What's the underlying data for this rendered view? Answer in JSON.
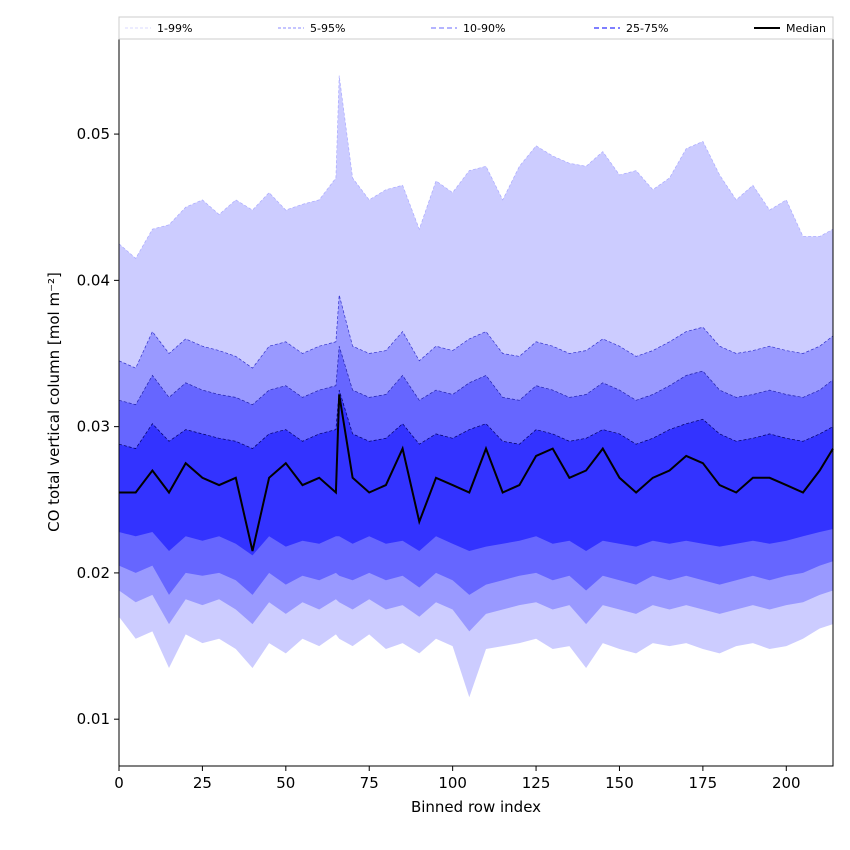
{
  "chart_data": {
    "type": "area",
    "title": "",
    "xlabel": "Binned row index",
    "ylabel": "CO total vertical column [mol m⁻²]",
    "xlim": [
      0,
      214
    ],
    "ylim": [
      0.0068,
      0.0565
    ],
    "x_ticks": [
      0,
      25,
      50,
      75,
      100,
      125,
      150,
      175,
      200
    ],
    "y_ticks": [
      0.01,
      0.02,
      0.03,
      0.04,
      0.05
    ],
    "x_tick_labels": [
      "0",
      "25",
      "50",
      "75",
      "100",
      "125",
      "150",
      "175",
      "200"
    ],
    "y_tick_labels": [
      "0.01",
      "0.02",
      "0.03",
      "0.04",
      "0.05"
    ],
    "grid": false,
    "legend_position": "top, above plot area",
    "legend": [
      "1-99%",
      "5-95%",
      "10-90%",
      "25-75%",
      "Median"
    ],
    "x": [
      0,
      5,
      10,
      15,
      20,
      25,
      30,
      35,
      40,
      45,
      50,
      55,
      60,
      65,
      66,
      70,
      75,
      80,
      85,
      90,
      95,
      100,
      105,
      110,
      115,
      120,
      125,
      130,
      135,
      140,
      145,
      150,
      155,
      160,
      165,
      170,
      175,
      180,
      185,
      190,
      195,
      200,
      205,
      210,
      214
    ],
    "series": [
      {
        "name": "1-99%",
        "style": "fill",
        "color": "#ccccff",
        "lower": [
          0.017,
          0.0155,
          0.016,
          0.0135,
          0.0158,
          0.0152,
          0.0155,
          0.0148,
          0.0135,
          0.0152,
          0.0145,
          0.0155,
          0.015,
          0.0158,
          0.0155,
          0.015,
          0.0158,
          0.0148,
          0.0152,
          0.0145,
          0.0155,
          0.015,
          0.0115,
          0.0148,
          0.015,
          0.0152,
          0.0155,
          0.0148,
          0.015,
          0.0135,
          0.0152,
          0.0148,
          0.0145,
          0.0152,
          0.015,
          0.0152,
          0.0148,
          0.0145,
          0.015,
          0.0152,
          0.0148,
          0.015,
          0.0155,
          0.0162,
          0.0165
        ],
        "upper": [
          0.0425,
          0.0415,
          0.0435,
          0.0438,
          0.045,
          0.0455,
          0.0445,
          0.0455,
          0.0448,
          0.046,
          0.0448,
          0.0452,
          0.0455,
          0.047,
          0.054,
          0.047,
          0.0455,
          0.0462,
          0.0465,
          0.0435,
          0.0468,
          0.046,
          0.0475,
          0.0478,
          0.0455,
          0.0478,
          0.0492,
          0.0485,
          0.048,
          0.0478,
          0.0488,
          0.0472,
          0.0475,
          0.0462,
          0.047,
          0.049,
          0.0495,
          0.0472,
          0.0455,
          0.0465,
          0.0448,
          0.0455,
          0.043,
          0.043,
          0.0435
        ]
      },
      {
        "name": "5-95%",
        "style": "fill",
        "color": "#9999ff",
        "lower": [
          0.0188,
          0.018,
          0.0185,
          0.0165,
          0.0182,
          0.0178,
          0.0182,
          0.0175,
          0.0165,
          0.018,
          0.0172,
          0.018,
          0.0175,
          0.0182,
          0.018,
          0.0175,
          0.0182,
          0.0175,
          0.0178,
          0.017,
          0.018,
          0.0175,
          0.016,
          0.0172,
          0.0175,
          0.0178,
          0.018,
          0.0175,
          0.0178,
          0.0165,
          0.0178,
          0.0175,
          0.0172,
          0.0178,
          0.0175,
          0.0178,
          0.0175,
          0.0172,
          0.0175,
          0.0178,
          0.0175,
          0.0178,
          0.018,
          0.0185,
          0.0188
        ],
        "upper": [
          0.0345,
          0.034,
          0.0365,
          0.035,
          0.036,
          0.0355,
          0.0352,
          0.0348,
          0.034,
          0.0355,
          0.0358,
          0.035,
          0.0355,
          0.0358,
          0.039,
          0.0355,
          0.035,
          0.0352,
          0.0365,
          0.0345,
          0.0355,
          0.0352,
          0.036,
          0.0365,
          0.035,
          0.0348,
          0.0358,
          0.0355,
          0.035,
          0.0352,
          0.036,
          0.0355,
          0.0348,
          0.0352,
          0.0358,
          0.0365,
          0.0368,
          0.0355,
          0.035,
          0.0352,
          0.0355,
          0.0352,
          0.035,
          0.0355,
          0.0362
        ]
      },
      {
        "name": "10-90%",
        "style": "fill",
        "color": "#6666ff",
        "lower": [
          0.0205,
          0.02,
          0.0205,
          0.0185,
          0.02,
          0.0198,
          0.02,
          0.0195,
          0.0185,
          0.02,
          0.0192,
          0.0198,
          0.0195,
          0.02,
          0.0198,
          0.0195,
          0.02,
          0.0195,
          0.0198,
          0.019,
          0.02,
          0.0195,
          0.0185,
          0.0192,
          0.0195,
          0.0198,
          0.02,
          0.0195,
          0.0198,
          0.0188,
          0.0198,
          0.0195,
          0.0192,
          0.0198,
          0.0195,
          0.0198,
          0.0195,
          0.0192,
          0.0195,
          0.0198,
          0.0195,
          0.0198,
          0.02,
          0.0205,
          0.0208
        ],
        "upper": [
          0.0318,
          0.0315,
          0.0335,
          0.032,
          0.033,
          0.0325,
          0.0322,
          0.032,
          0.0315,
          0.0325,
          0.0328,
          0.032,
          0.0325,
          0.0328,
          0.0355,
          0.0325,
          0.032,
          0.0322,
          0.0335,
          0.0318,
          0.0325,
          0.0322,
          0.033,
          0.0335,
          0.032,
          0.0318,
          0.0328,
          0.0325,
          0.032,
          0.0322,
          0.033,
          0.0325,
          0.0318,
          0.0322,
          0.0328,
          0.0335,
          0.0338,
          0.0325,
          0.032,
          0.0322,
          0.0325,
          0.0322,
          0.032,
          0.0325,
          0.0332
        ]
      },
      {
        "name": "25-75%",
        "style": "fill",
        "color": "#3333ff",
        "lower": [
          0.0228,
          0.0225,
          0.0228,
          0.0215,
          0.0225,
          0.0222,
          0.0225,
          0.022,
          0.0212,
          0.0225,
          0.0218,
          0.0222,
          0.022,
          0.0225,
          0.0225,
          0.022,
          0.0225,
          0.022,
          0.0222,
          0.0215,
          0.0225,
          0.022,
          0.0215,
          0.0218,
          0.022,
          0.0222,
          0.0225,
          0.022,
          0.0222,
          0.0215,
          0.0222,
          0.022,
          0.0218,
          0.0222,
          0.022,
          0.0222,
          0.022,
          0.0218,
          0.022,
          0.0222,
          0.022,
          0.0222,
          0.0225,
          0.0228,
          0.023
        ],
        "upper": [
          0.0288,
          0.0285,
          0.0302,
          0.029,
          0.0298,
          0.0295,
          0.0292,
          0.029,
          0.0285,
          0.0295,
          0.0298,
          0.029,
          0.0295,
          0.0298,
          0.0325,
          0.0295,
          0.029,
          0.0292,
          0.0302,
          0.0288,
          0.0295,
          0.0292,
          0.0298,
          0.0302,
          0.029,
          0.0288,
          0.0298,
          0.0295,
          0.029,
          0.0292,
          0.0298,
          0.0295,
          0.0288,
          0.0292,
          0.0298,
          0.0302,
          0.0305,
          0.0295,
          0.029,
          0.0292,
          0.0295,
          0.0292,
          0.029,
          0.0295,
          0.03
        ]
      },
      {
        "name": "Median",
        "style": "line",
        "color": "#000000",
        "values": [
          0.0255,
          0.0255,
          0.027,
          0.0255,
          0.0275,
          0.0265,
          0.026,
          0.0265,
          0.0215,
          0.0265,
          0.0275,
          0.026,
          0.0265,
          0.0255,
          0.0322,
          0.0265,
          0.0255,
          0.026,
          0.0285,
          0.0235,
          0.0265,
          0.026,
          0.0255,
          0.0285,
          0.0255,
          0.026,
          0.028,
          0.0285,
          0.0265,
          0.027,
          0.0285,
          0.0265,
          0.0255,
          0.0265,
          0.027,
          0.028,
          0.0275,
          0.026,
          0.0255,
          0.0265,
          0.0265,
          0.026,
          0.0255,
          0.027,
          0.0285
        ]
      }
    ]
  }
}
